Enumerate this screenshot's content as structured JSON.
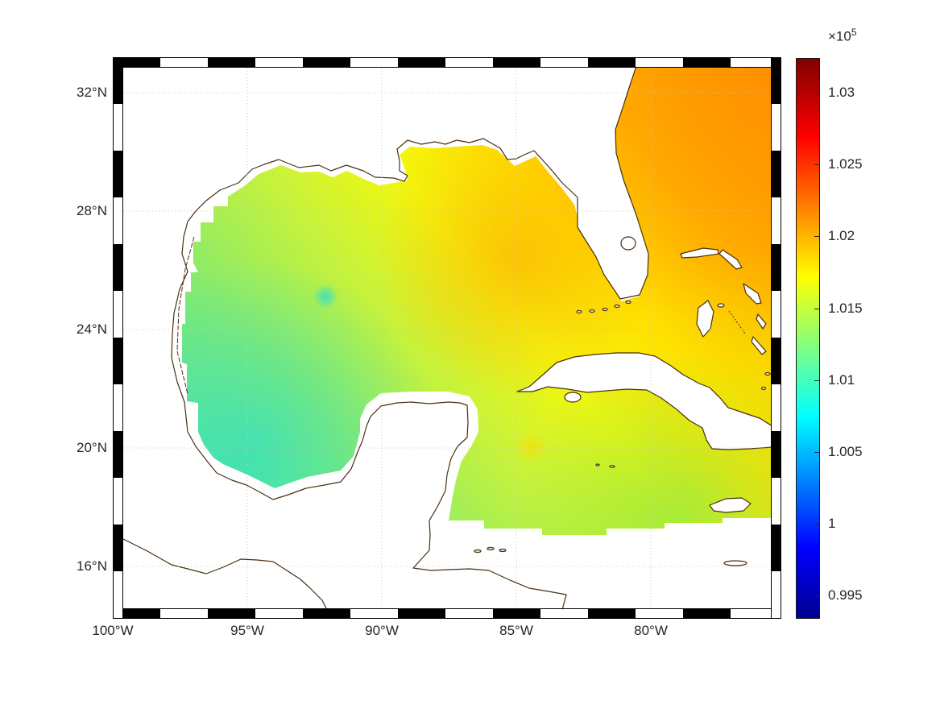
{
  "chart_data": {
    "type": "heatmap",
    "title": "",
    "description": "Geographic filled-pixel field (sea-level pressure, Pa) over the Gulf of Mexico, western Atlantic and northwest Caribbean, jet colormap, MATLAB m_map style checkered frame, land white with brown coastlines",
    "x_axis": {
      "label": "",
      "range": [
        -100,
        -75.2
      ],
      "ticks": [
        {
          "value": -100,
          "label": "100°W"
        },
        {
          "value": -95,
          "label": "95°W"
        },
        {
          "value": -90,
          "label": "90°W"
        },
        {
          "value": -85,
          "label": "85°W"
        },
        {
          "value": -80,
          "label": "80°W"
        }
      ]
    },
    "y_axis": {
      "label": "",
      "range": [
        14.3,
        33.2
      ],
      "ticks": [
        {
          "value": 32,
          "label": "32°N"
        },
        {
          "value": 28,
          "label": "28°N"
        },
        {
          "value": 24,
          "label": "24°N"
        },
        {
          "value": 20,
          "label": "20°N"
        },
        {
          "value": 16,
          "label": "16°N"
        }
      ]
    },
    "colorbar": {
      "exponent_base": "×10",
      "exponent_power": "5",
      "units_multiplier": 100000,
      "range": [
        0.9934,
        1.0324
      ],
      "colormap": "jet",
      "ticks": [
        {
          "value": 0.995,
          "label": "0.995"
        },
        {
          "value": 1,
          "label": "1"
        },
        {
          "value": 1.005,
          "label": "1.005"
        },
        {
          "value": 1.01,
          "label": "1.01"
        },
        {
          "value": 1.015,
          "label": "1.015"
        },
        {
          "value": 1.02,
          "label": "1.02"
        },
        {
          "value": 1.025,
          "label": "1.025"
        },
        {
          "value": 1.03,
          "label": "1.03"
        }
      ],
      "gradient": [
        {
          "offset": 0,
          "color": "#000090"
        },
        {
          "offset": 0.125,
          "color": "#0000ff"
        },
        {
          "offset": 0.36,
          "color": "#00ffff"
        },
        {
          "offset": 0.485,
          "color": "#80ff80"
        },
        {
          "offset": 0.61,
          "color": "#ffff00"
        },
        {
          "offset": 0.86,
          "color": "#ff0000"
        },
        {
          "offset": 1,
          "color": "#800000"
        }
      ]
    },
    "field_samples": [
      {
        "lon": -96.0,
        "lat": 24.0,
        "value": 1.0125
      },
      {
        "lon": -94.5,
        "lat": 20.0,
        "value": 1.009
      },
      {
        "lon": -92.0,
        "lat": 25.4,
        "value": 1.0105
      },
      {
        "lon": -90.0,
        "lat": 24.0,
        "value": 1.014
      },
      {
        "lon": -90.0,
        "lat": 28.0,
        "value": 1.016
      },
      {
        "lon": -87.0,
        "lat": 26.5,
        "value": 1.019
      },
      {
        "lon": -85.0,
        "lat": 28.0,
        "value": 1.021
      },
      {
        "lon": -83.0,
        "lat": 25.0,
        "value": 1.017
      },
      {
        "lon": -80.0,
        "lat": 31.0,
        "value": 1.0235
      },
      {
        "lon": -77.0,
        "lat": 29.0,
        "value": 1.022
      },
      {
        "lon": -79.0,
        "lat": 24.0,
        "value": 1.018
      },
      {
        "lon": -80.0,
        "lat": 20.0,
        "value": 1.0145
      },
      {
        "lon": -84.5,
        "lat": 20.0,
        "value": 1.016
      },
      {
        "lon": -85.0,
        "lat": 18.5,
        "value": 1.013
      },
      {
        "lon": -87.0,
        "lat": 18.0,
        "value": 1.012
      }
    ],
    "colors": {
      "coastline": "#4a2f10",
      "grid": "#c4c4c4",
      "text": "#262626",
      "land": "#ffffff",
      "background": "#ffffff"
    }
  }
}
